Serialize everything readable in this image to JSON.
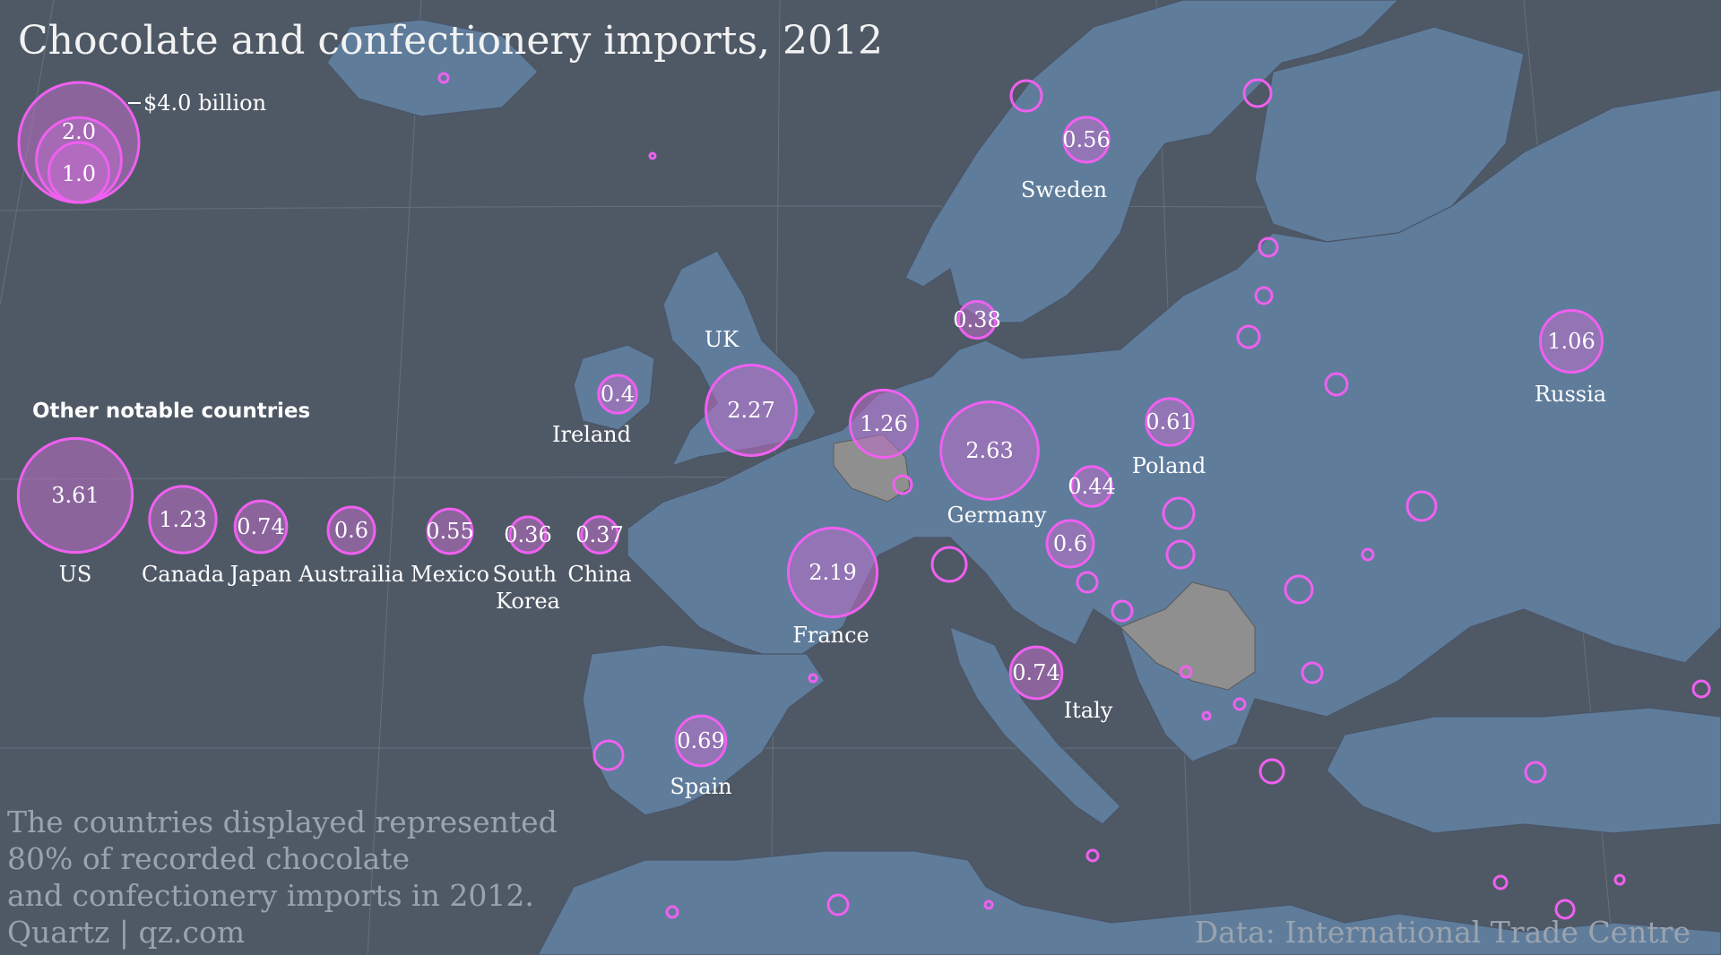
{
  "title": "Chocolate and confectionery imports, 2012",
  "colors": {
    "sea": "#4f5966",
    "land": "#5f7c9b",
    "land_excluded": "#8f8f8f",
    "bubble_stroke": "#f060f0",
    "bubble_fill": "rgba(190,110,200,0.55)"
  },
  "legend": {
    "max_label": "$4.0 billion",
    "mid_label": "2.0",
    "min_label": "1.0",
    "values": [
      4.0,
      2.0,
      1.0
    ]
  },
  "other_header": "Other notable countries",
  "note_lines": [
    "The countries displayed represented",
    "80% of recorded chocolate",
    "and confectionery imports in 2012."
  ],
  "credit": "Quartz | qz.com",
  "source": "Data: International Trade Centre",
  "chart_data": {
    "type": "bubble-map",
    "title": "Chocolate and confectionery imports, 2012",
    "unit": "$ billion",
    "mapped": [
      {
        "name": "UK",
        "value": 2.27
      },
      {
        "name": "Ireland",
        "value": 0.4
      },
      {
        "name": "",
        "value": 1.26
      },
      {
        "name": "Germany",
        "value": 2.63
      },
      {
        "name": "France",
        "value": 2.19
      },
      {
        "name": "Sweden",
        "value": 0.56
      },
      {
        "name": "",
        "value": 0.38
      },
      {
        "name": "Poland",
        "value": 0.61
      },
      {
        "name": "",
        "value": 0.44
      },
      {
        "name": "",
        "value": 0.6
      },
      {
        "name": "Italy",
        "value": 0.74
      },
      {
        "name": "Spain",
        "value": 0.69
      },
      {
        "name": "Russia",
        "value": 1.06
      }
    ],
    "other": [
      {
        "name": "US",
        "value": 3.61
      },
      {
        "name": "Canada",
        "value": 1.23
      },
      {
        "name": "Japan",
        "value": 0.74
      },
      {
        "name": "Austrailia",
        "value": 0.6
      },
      {
        "name": "Mexico",
        "value": 0.55
      },
      {
        "name": "South Korea",
        "value": 0.36
      },
      {
        "name": "China",
        "value": 0.37
      }
    ]
  }
}
